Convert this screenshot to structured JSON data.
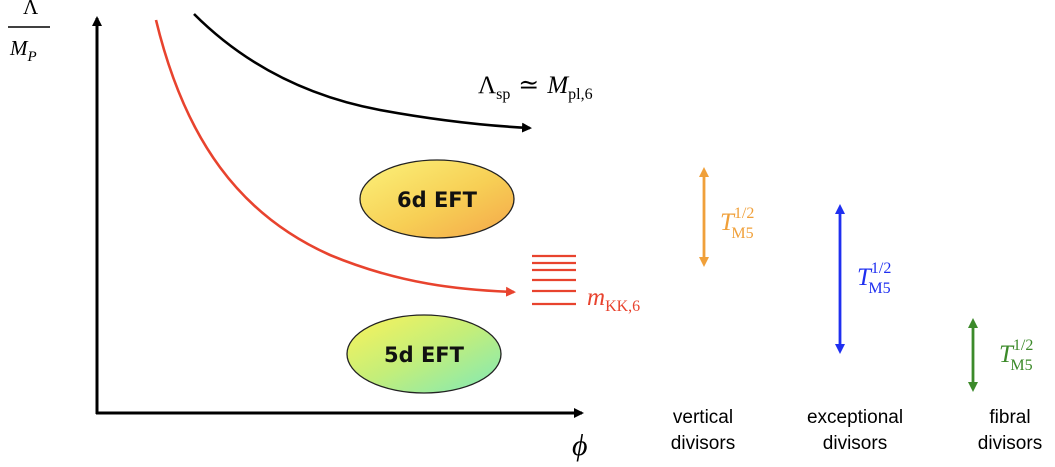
{
  "axes": {
    "y_label_top": "Λ",
    "y_label_bottom_main": "M",
    "y_label_bottom_sub": "P",
    "x_label": "ϕ"
  },
  "species_scale": {
    "main": "Λ",
    "sub": "sp",
    "approx": "≃",
    "rhs_main": "M",
    "rhs_sub": "pl,6"
  },
  "kk_tower": {
    "main": "m",
    "sub": "KK,6"
  },
  "regions": {
    "upper": "6d EFT",
    "lower": "5d EFT"
  },
  "tension_label": {
    "main": "T",
    "sub": "M5",
    "sup": "1/2"
  },
  "divisors": [
    {
      "line1": "vertical",
      "line2": "divisors",
      "color": "#f0a03a"
    },
    {
      "line1": "exceptional",
      "line2": "divisors",
      "color": "#1f2ff0"
    },
    {
      "line1": "fibral",
      "line2": "divisors",
      "color": "#3c8a2a"
    }
  ],
  "colors": {
    "axis": "#000000",
    "species_curve": "#000000",
    "kk_curve": "#e8432e",
    "kk_text": "#e8432e"
  }
}
